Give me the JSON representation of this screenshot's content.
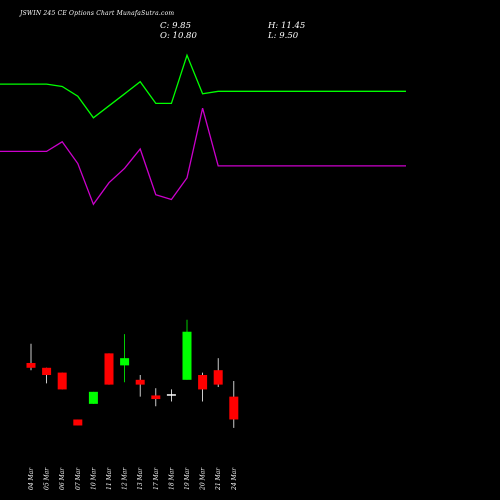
{
  "header": {
    "title": "JSWIN 245 CE Options Chart MunafaSutra.com",
    "close_label": "C: 9.85",
    "open_label": "O: 10.80",
    "high_label": "H: 11.45",
    "low_label": "L: 9.50"
  },
  "chart_data": {
    "type": "candlestick",
    "title": "JSWIN 245 CE Options Chart MunafaSutra.com",
    "colors": {
      "background": "#000000",
      "up": "#00ff00",
      "down": "#ff0000",
      "line_upper": "#00ff00",
      "line_lower": "#cc00cc",
      "doji": "#ffffff"
    },
    "categories": [
      "04 Mar",
      "05 Mar",
      "06 Mar",
      "07 Mar",
      "10 Mar",
      "11 Mar",
      "12 Mar",
      "13 Mar",
      "17 Mar",
      "18 Mar",
      "19 Mar",
      "20 Mar",
      "21 Mar",
      "24 Mar"
    ],
    "candles": [
      {
        "date": "04 Mar",
        "open": 12.2,
        "high": 13.0,
        "low": 11.9,
        "close": 12.0,
        "dir": "down"
      },
      {
        "date": "05 Mar",
        "open": 12.0,
        "high": 12.0,
        "low": 11.35,
        "close": 11.7,
        "dir": "down"
      },
      {
        "date": "06 Mar",
        "open": 11.8,
        "high": 11.8,
        "low": 11.1,
        "close": 11.1,
        "dir": "down"
      },
      {
        "date": "07 Mar",
        "open": 9.85,
        "high": 9.85,
        "low": 9.6,
        "close": 9.6,
        "dir": "down"
      },
      {
        "date": "10 Mar",
        "open": 10.5,
        "high": 11.0,
        "low": 10.5,
        "close": 11.0,
        "dir": "up"
      },
      {
        "date": "11 Mar",
        "open": 12.6,
        "high": 12.6,
        "low": 11.3,
        "close": 11.3,
        "dir": "down"
      },
      {
        "date": "12 Mar",
        "open": 12.1,
        "high": 13.4,
        "low": 11.4,
        "close": 12.4,
        "dir": "up"
      },
      {
        "date": "13 Mar",
        "open": 11.5,
        "high": 11.7,
        "low": 10.8,
        "close": 11.3,
        "dir": "down"
      },
      {
        "date": "17 Mar",
        "open": 10.85,
        "high": 11.15,
        "low": 10.4,
        "close": 10.7,
        "dir": "down"
      },
      {
        "date": "18 Mar",
        "open": 10.9,
        "high": 11.1,
        "low": 10.6,
        "close": 10.9,
        "dir": "doji"
      },
      {
        "date": "19 Mar",
        "open": 11.5,
        "high": 14.0,
        "low": 11.5,
        "close": 13.5,
        "dir": "up"
      },
      {
        "date": "20 Mar",
        "open": 11.7,
        "high": 11.8,
        "low": 10.6,
        "close": 11.1,
        "dir": "down"
      },
      {
        "date": "21 Mar",
        "open": 11.9,
        "high": 12.4,
        "low": 11.2,
        "close": 11.3,
        "dir": "down"
      },
      {
        "date": "24 Mar",
        "open": 10.8,
        "high": 11.45,
        "low": 9.5,
        "close": 9.85,
        "dir": "down"
      }
    ],
    "lines": [
      {
        "color": "#00ff00",
        "values": [
          23.8,
          23.8,
          23.7,
          23.3,
          22.4,
          22.9,
          23.4,
          23.9,
          23.0,
          23.0,
          25.0,
          23.4,
          23.5,
          23.5
        ]
      },
      {
        "color": "#cc00cc",
        "values": [
          21.0,
          21.0,
          21.4,
          20.5,
          18.8,
          19.7,
          20.3,
          21.1,
          19.2,
          19.0,
          19.9,
          22.8,
          20.4,
          20.4
        ]
      }
    ],
    "ylim": [
      6.5,
      27.3
    ]
  }
}
